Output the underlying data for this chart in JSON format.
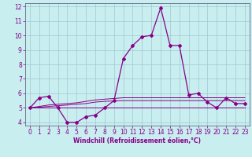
{
  "xlabel": "Windchill (Refroidissement éolien,°C)",
  "bg_color": "#c8eef0",
  "grid_color": "#a0c8d0",
  "line_color": "#880088",
  "spine_color": "#666688",
  "x_values": [
    0,
    1,
    2,
    3,
    4,
    5,
    6,
    7,
    8,
    9,
    10,
    11,
    12,
    13,
    14,
    15,
    16,
    17,
    18,
    19,
    20,
    21,
    22,
    23
  ],
  "y_main": [
    5.0,
    5.7,
    5.8,
    5.0,
    4.0,
    4.0,
    4.4,
    4.5,
    5.0,
    5.5,
    8.4,
    9.3,
    9.9,
    10.0,
    11.9,
    9.3,
    9.3,
    5.9,
    6.0,
    5.4,
    5.0,
    5.7,
    5.3,
    5.3
  ],
  "y_flat": [
    5.0,
    5.0,
    5.0,
    5.0,
    5.0,
    5.0,
    5.0,
    5.0,
    5.0,
    5.0,
    5.0,
    5.0,
    5.0,
    5.0,
    5.0,
    5.0,
    5.0,
    5.0,
    5.0,
    5.0,
    5.0,
    5.0,
    5.0,
    5.0
  ],
  "y_trend1": [
    5.0,
    5.1,
    5.2,
    5.25,
    5.3,
    5.35,
    5.45,
    5.55,
    5.6,
    5.65,
    5.7,
    5.7,
    5.7,
    5.7,
    5.7,
    5.7,
    5.7,
    5.7,
    5.7,
    5.7,
    5.7,
    5.7,
    5.7,
    5.7
  ],
  "y_trend2": [
    5.0,
    5.05,
    5.1,
    5.15,
    5.2,
    5.25,
    5.3,
    5.4,
    5.45,
    5.48,
    5.5,
    5.5,
    5.5,
    5.5,
    5.5,
    5.5,
    5.5,
    5.5,
    5.5,
    5.5,
    5.5,
    5.5,
    5.5,
    5.5
  ],
  "ylim_min": 4,
  "ylim_max": 12,
  "xlim_min": 0,
  "xlim_max": 23,
  "yticks": [
    4,
    5,
    6,
    7,
    8,
    9,
    10,
    11,
    12
  ],
  "xticks": [
    0,
    1,
    2,
    3,
    4,
    5,
    6,
    7,
    8,
    9,
    10,
    11,
    12,
    13,
    14,
    15,
    16,
    17,
    18,
    19,
    20,
    21,
    22,
    23
  ],
  "tick_fontsize": 5.5,
  "xlabel_fontsize": 5.5,
  "marker": "D",
  "markersize": 2.0,
  "linewidth_main": 0.9,
  "linewidth_extra": 0.7
}
